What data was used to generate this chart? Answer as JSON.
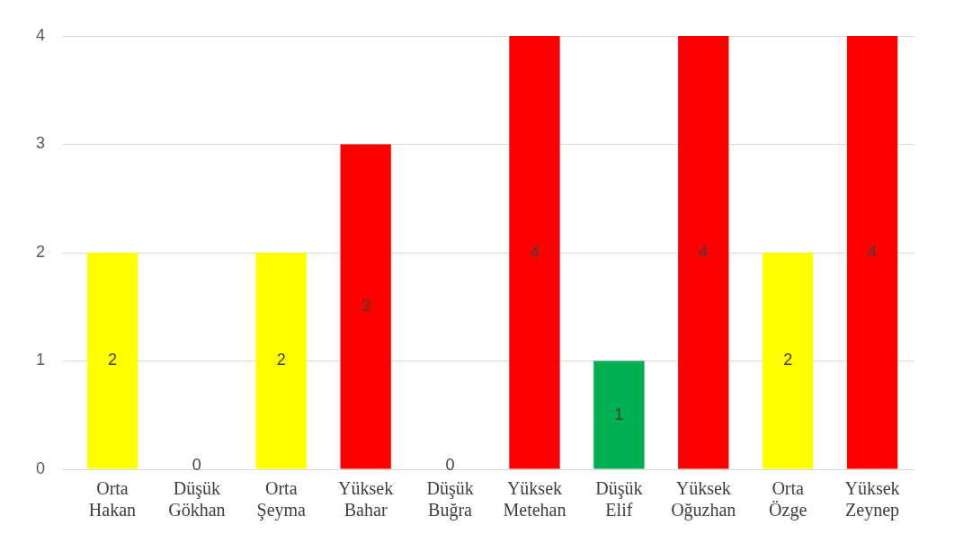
{
  "chart_data": {
    "type": "bar",
    "categories": [
      "Orta\nHakan",
      "Düşük\nGökhan",
      "Orta\nŞeyma",
      "Yüksek\nBahar",
      "Düşük\nBuğra",
      "Yüksek\nMetehan",
      "Düşük\nElif",
      "Yüksek\nOğuzhan",
      "Orta\nÖzge",
      "Yüksek\nZeynep"
    ],
    "values": [
      2,
      0,
      2,
      3,
      0,
      4,
      1,
      4,
      2,
      4
    ],
    "colors": [
      "#ffff00",
      "#00b050",
      "#ffff00",
      "#ff0000",
      "#00b050",
      "#ff0000",
      "#00b050",
      "#ff0000",
      "#ffff00",
      "#ff0000"
    ],
    "ylim": [
      0,
      4
    ],
    "yticks": [
      0,
      1,
      2,
      3,
      4
    ],
    "grid": "y",
    "data_labels": true,
    "legend": false
  }
}
